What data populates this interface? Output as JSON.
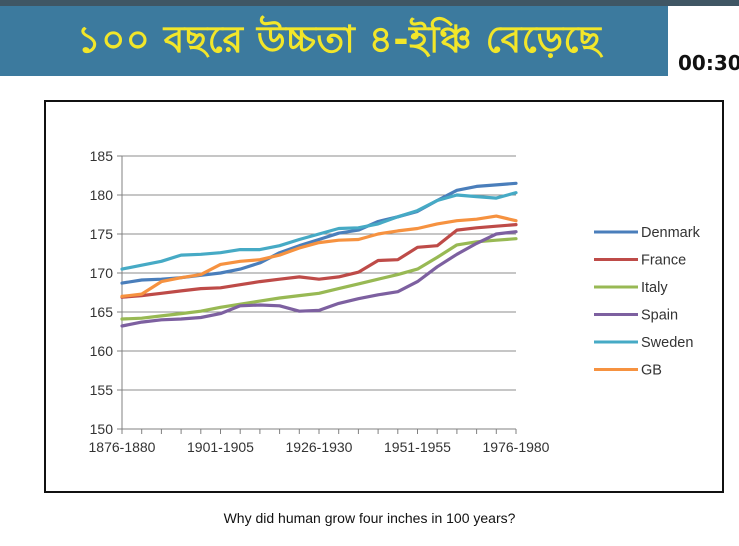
{
  "banner": {
    "title": "১০০ বছরে উচ্চতা ৪-ইঞ্চি বেড়েছে",
    "timer": "00:30"
  },
  "caption": "Why did human grow four inches in 100 years?",
  "chart_data": {
    "type": "line",
    "title": "",
    "xlabel": "",
    "ylabel": "",
    "ylim": [
      150,
      185
    ],
    "yticks": [
      150,
      155,
      160,
      165,
      170,
      175,
      180,
      185
    ],
    "x": [
      "1876-1880",
      "1881-1885",
      "1886-1890",
      "1891-1895",
      "1896-1900",
      "1901-1905",
      "1906-1910",
      "1911-1915",
      "1916-1920",
      "1921-1925",
      "1926-1930",
      "1931-1935",
      "1936-1940",
      "1941-1945",
      "1946-1950",
      "1951-1955",
      "1956-1960",
      "1961-1965",
      "1966-1970",
      "1971-1975",
      "1976-1980"
    ],
    "xtick_labels": [
      "1876-1880",
      "1901-1905",
      "1926-1930",
      "1951-1955",
      "1976-1980"
    ],
    "xtick_label_indices": [
      0,
      5,
      10,
      15,
      20
    ],
    "grid": true,
    "legend": "right",
    "series": [
      {
        "name": "Denmark",
        "color": "#4a7ebb",
        "values": [
          168.7,
          169.1,
          169.2,
          169.4,
          169.7,
          170.0,
          170.5,
          171.3,
          172.6,
          173.5,
          174.3,
          175.1,
          175.5,
          176.6,
          177.2,
          177.9,
          179.3,
          180.6,
          181.1,
          181.3,
          181.5
        ]
      },
      {
        "name": "France",
        "color": "#be4b48",
        "values": [
          166.9,
          167.1,
          167.4,
          167.7,
          168.0,
          168.1,
          168.5,
          168.9,
          169.2,
          169.5,
          169.2,
          169.5,
          170.1,
          171.6,
          171.7,
          173.3,
          173.5,
          175.5,
          175.8,
          176.0,
          176.2
        ]
      },
      {
        "name": "Italy",
        "color": "#98b954",
        "values": [
          164.1,
          164.2,
          164.5,
          164.8,
          165.1,
          165.6,
          166.0,
          166.4,
          166.8,
          167.1,
          167.4,
          168.0,
          168.6,
          169.2,
          169.8,
          170.5,
          172.0,
          173.6,
          174.0,
          174.2,
          174.4
        ]
      },
      {
        "name": "Spain",
        "color": "#7d60a0",
        "values": [
          163.2,
          163.7,
          164.0,
          164.1,
          164.3,
          164.8,
          165.8,
          165.9,
          165.8,
          165.1,
          165.2,
          166.1,
          166.7,
          167.2,
          167.6,
          168.9,
          170.8,
          172.4,
          173.8,
          175.0,
          175.3
        ]
      },
      {
        "name": "Sweden",
        "color": "#46aac5",
        "values": [
          170.5,
          171.0,
          171.5,
          172.3,
          172.4,
          172.6,
          173.0,
          173.0,
          173.5,
          174.3,
          175.0,
          175.7,
          175.8,
          176.3,
          177.2,
          178.0,
          179.3,
          180.0,
          179.8,
          179.6,
          180.3
        ]
      },
      {
        "name": "GB",
        "color": "#f69240",
        "values": [
          167.0,
          167.3,
          168.9,
          169.4,
          169.8,
          171.1,
          171.5,
          171.7,
          172.3,
          173.2,
          173.9,
          174.2,
          174.3,
          175.0,
          175.4,
          175.7,
          176.3,
          176.7,
          176.9,
          177.3,
          176.7
        ]
      }
    ]
  }
}
